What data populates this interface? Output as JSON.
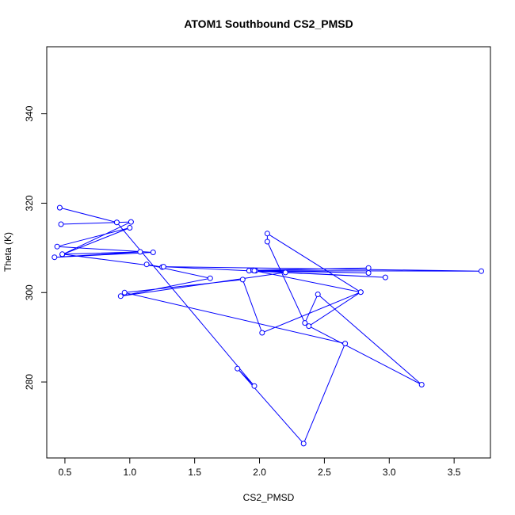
{
  "chart_data": {
    "type": "line",
    "title": "ATOM1 Southbound CS2_PMSD",
    "xlabel": "CS2_PMSD",
    "ylabel": "Theta (K)",
    "xlim": [
      0.36,
      3.78
    ],
    "ylim": [
      263,
      355
    ],
    "xticks": [
      0.5,
      1.0,
      1.5,
      2.0,
      2.5,
      3.0,
      3.5
    ],
    "xtick_labels": [
      "0.5",
      "1.0",
      "1.5",
      "2.0",
      "2.5",
      "3.0",
      "3.5"
    ],
    "yticks": [
      280,
      300,
      320,
      340
    ],
    "ytick_labels": [
      "280",
      "300",
      "320",
      "340"
    ],
    "grid": false,
    "line_color": "#0000ff",
    "marker": "open-circle",
    "series": [
      {
        "x": [
          0.46,
          0.9,
          0.47,
          1.01,
          0.48,
          1.0,
          0.44,
          1.18,
          0.42,
          1.08,
          0.48,
          1.25,
          1.13,
          1.62,
          0.93,
          2.2,
          1.92,
          2.84,
          1.95,
          2.84,
          1.97,
          2.97,
          1.26,
          3.71,
          1.96,
          2.78,
          2.06,
          2.06,
          2.35,
          2.45,
          3.25,
          2.38,
          2.78,
          2.02,
          1.87,
          0.96,
          2.66,
          2.34,
          1.83,
          1.96,
          0.9
        ],
        "y": [
          319.0,
          315.7,
          315.3,
          315.8,
          308.5,
          314.5,
          310.3,
          309.0,
          307.9,
          309.1,
          308.6,
          305.7,
          306.3,
          303.2,
          299.2,
          304.5,
          304.9,
          305.5,
          305.0,
          304.4,
          304.9,
          303.4,
          305.8,
          304.8,
          304.9,
          300.1,
          313.2,
          311.4,
          293.2,
          299.6,
          279.4,
          292.5,
          300.1,
          291.0,
          302.9,
          300.0,
          288.6,
          266.2,
          283.0,
          279.1,
          315.7
        ]
      }
    ]
  }
}
